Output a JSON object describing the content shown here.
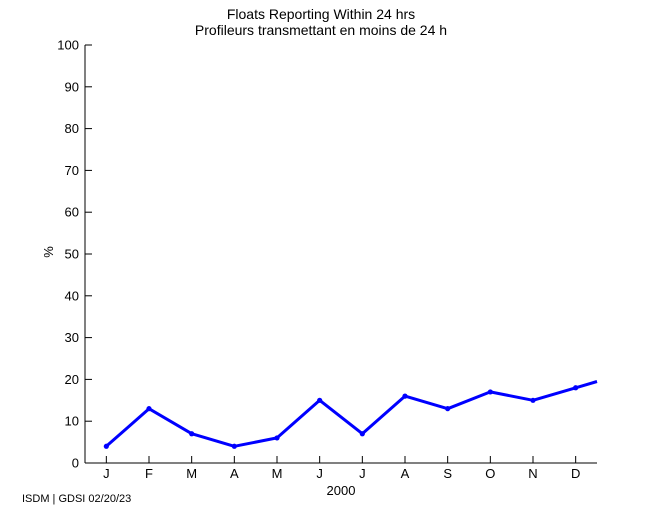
{
  "title": {
    "line1": "Floats Reporting Within 24 hrs",
    "line2": "Profileurs transmettant en moins de 24 h"
  },
  "footer": {
    "credit": "ISDM | GDSI 02/20/23"
  },
  "chart_data": {
    "type": "line",
    "title": "Floats Reporting Within 24 hrs",
    "subtitle": "Profileurs transmettant en moins de 24 h",
    "ylabel": "%",
    "xlabel": "2000",
    "categories": [
      "J",
      "F",
      "M",
      "A",
      "M",
      "J",
      "J",
      "A",
      "S",
      "O",
      "N",
      "D"
    ],
    "values": [
      4,
      13,
      7,
      4,
      6,
      15,
      7,
      16,
      13,
      17,
      15,
      18
    ],
    "edge_continuation_value": 19.5,
    "ylim": [
      0,
      100
    ],
    "ytick_labels": [
      "0",
      "10",
      "20",
      "30",
      "40",
      "50",
      "60",
      "70",
      "80",
      "90",
      "100"
    ],
    "grid": false,
    "legend": false,
    "line_color": "#0000ff",
    "axis_color": "#000000",
    "marker": "dot"
  }
}
